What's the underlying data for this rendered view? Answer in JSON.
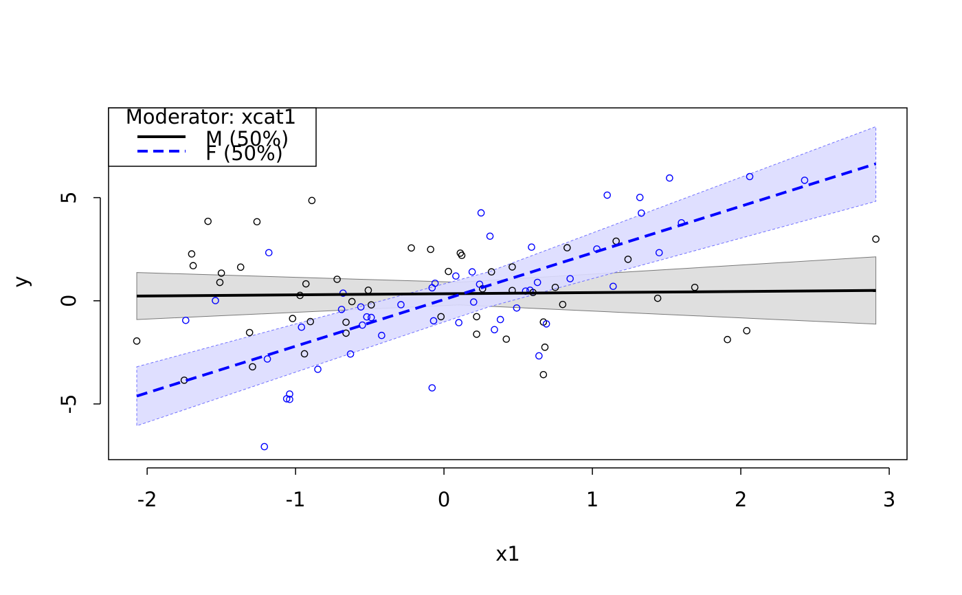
{
  "chart_data": {
    "type": "scatter",
    "xlabel": "x1",
    "ylabel": "y",
    "xlim": [
      -2.26,
      3.12
    ],
    "ylim": [
      -7.7,
      9.35
    ],
    "xticks": [
      -2,
      -1,
      0,
      1,
      2,
      3
    ],
    "yticks": [
      -5,
      0,
      5
    ],
    "grid": false,
    "legend": {
      "title": "Moderator: xcat1",
      "placement": "top-left",
      "entries": [
        "M (50%)",
        "F (50%)"
      ]
    },
    "series": [
      {
        "name": "M (50%)",
        "color": "#000000",
        "line_style": "solid",
        "band_color": "#bfbfbf",
        "fit": {
          "x": [
            -2.07,
            2.91
          ],
          "y": [
            0.23,
            0.5
          ]
        },
        "band_upper": {
          "x": [
            -2.07,
            0.1,
            2.91
          ],
          "y": [
            1.37,
            0.9,
            2.13
          ]
        },
        "band_lower": {
          "x": [
            -2.07,
            0.1,
            2.91
          ],
          "y": [
            -0.91,
            -0.2,
            -1.13
          ]
        },
        "points": [
          [
            -2.07,
            -1.95
          ],
          [
            -1.75,
            -3.85
          ],
          [
            -1.7,
            2.27
          ],
          [
            -1.69,
            1.7
          ],
          [
            -1.59,
            3.85
          ],
          [
            -1.5,
            1.34
          ],
          [
            -1.51,
            0.89
          ],
          [
            -1.37,
            1.63
          ],
          [
            -1.31,
            -1.54
          ],
          [
            -1.29,
            -3.2
          ],
          [
            -1.26,
            3.83
          ],
          [
            -1.02,
            -0.86
          ],
          [
            -0.97,
            0.26
          ],
          [
            -0.94,
            -2.57
          ],
          [
            -0.93,
            0.82
          ],
          [
            -0.9,
            -1.01
          ],
          [
            -0.89,
            4.86
          ],
          [
            -0.72,
            1.04
          ],
          [
            -0.66,
            -1.04
          ],
          [
            -0.66,
            -1.57
          ],
          [
            -0.62,
            -0.04
          ],
          [
            -0.51,
            0.51
          ],
          [
            -0.49,
            -0.2
          ],
          [
            -0.22,
            2.56
          ],
          [
            -0.09,
            2.49
          ],
          [
            -0.02,
            -0.77
          ],
          [
            0.03,
            1.42
          ],
          [
            0.11,
            2.31
          ],
          [
            0.12,
            2.2
          ],
          [
            0.22,
            -0.77
          ],
          [
            0.22,
            -1.62
          ],
          [
            0.26,
            0.58
          ],
          [
            0.32,
            1.4
          ],
          [
            0.42,
            -1.86
          ],
          [
            0.46,
            1.64
          ],
          [
            0.46,
            0.5
          ],
          [
            0.6,
            0.4
          ],
          [
            0.67,
            -1.03
          ],
          [
            0.67,
            -3.58
          ],
          [
            0.68,
            -2.25
          ],
          [
            0.75,
            0.65
          ],
          [
            0.8,
            -0.18
          ],
          [
            0.83,
            2.57
          ],
          [
            1.16,
            2.89
          ],
          [
            1.24,
            2.01
          ],
          [
            1.44,
            0.12
          ],
          [
            1.69,
            0.65
          ],
          [
            1.91,
            -1.88
          ],
          [
            2.04,
            -1.45
          ],
          [
            2.91,
            2.99
          ]
        ]
      },
      {
        "name": "F (50%)",
        "color": "#0000ff",
        "line_style": "dashed",
        "band_color": "#dcdcff",
        "fit": {
          "x": [
            -2.07,
            2.91
          ],
          "y": [
            -4.62,
            6.64
          ]
        },
        "band_upper": {
          "x": [
            -2.07,
            0.3,
            2.91
          ],
          "y": [
            -3.2,
            1.4,
            8.44
          ]
        },
        "band_lower": {
          "x": [
            -2.07,
            0.3,
            2.91
          ],
          "y": [
            -6.06,
            -0.3,
            4.82
          ]
        },
        "points": [
          [
            -1.74,
            -0.95
          ],
          [
            -1.54,
            0.01
          ],
          [
            -1.19,
            -2.82
          ],
          [
            -1.18,
            2.33
          ],
          [
            -1.21,
            -7.07
          ],
          [
            -1.06,
            -4.75
          ],
          [
            -1.04,
            -4.52
          ],
          [
            -1.04,
            -4.78
          ],
          [
            -0.96,
            -1.28
          ],
          [
            -0.85,
            -3.32
          ],
          [
            -0.69,
            -0.42
          ],
          [
            -0.68,
            0.37
          ],
          [
            -0.63,
            -2.58
          ],
          [
            -0.56,
            -0.3
          ],
          [
            -0.55,
            -1.18
          ],
          [
            -0.52,
            -0.78
          ],
          [
            -0.49,
            -0.81
          ],
          [
            -0.42,
            -1.68
          ],
          [
            -0.29,
            -0.19
          ],
          [
            -0.08,
            -4.22
          ],
          [
            -0.08,
            0.63
          ],
          [
            -0.07,
            -0.97
          ],
          [
            -0.06,
            0.85
          ],
          [
            0.08,
            1.2
          ],
          [
            0.1,
            -1.06
          ],
          [
            0.19,
            1.4
          ],
          [
            0.2,
            -0.06
          ],
          [
            0.24,
            0.8
          ],
          [
            0.25,
            4.26
          ],
          [
            0.31,
            3.13
          ],
          [
            0.34,
            -1.4
          ],
          [
            0.38,
            -0.91
          ],
          [
            0.49,
            -0.35
          ],
          [
            0.55,
            0.47
          ],
          [
            0.58,
            0.51
          ],
          [
            0.59,
            2.6
          ],
          [
            0.63,
            0.89
          ],
          [
            0.64,
            -2.67
          ],
          [
            0.69,
            -1.12
          ],
          [
            0.85,
            1.07
          ],
          [
            1.03,
            2.51
          ],
          [
            1.1,
            5.12
          ],
          [
            1.14,
            0.7
          ],
          [
            1.32,
            5.01
          ],
          [
            1.33,
            4.25
          ],
          [
            1.45,
            2.33
          ],
          [
            1.52,
            5.95
          ],
          [
            1.6,
            3.78
          ],
          [
            2.06,
            6.02
          ],
          [
            2.43,
            5.84
          ]
        ]
      }
    ]
  }
}
